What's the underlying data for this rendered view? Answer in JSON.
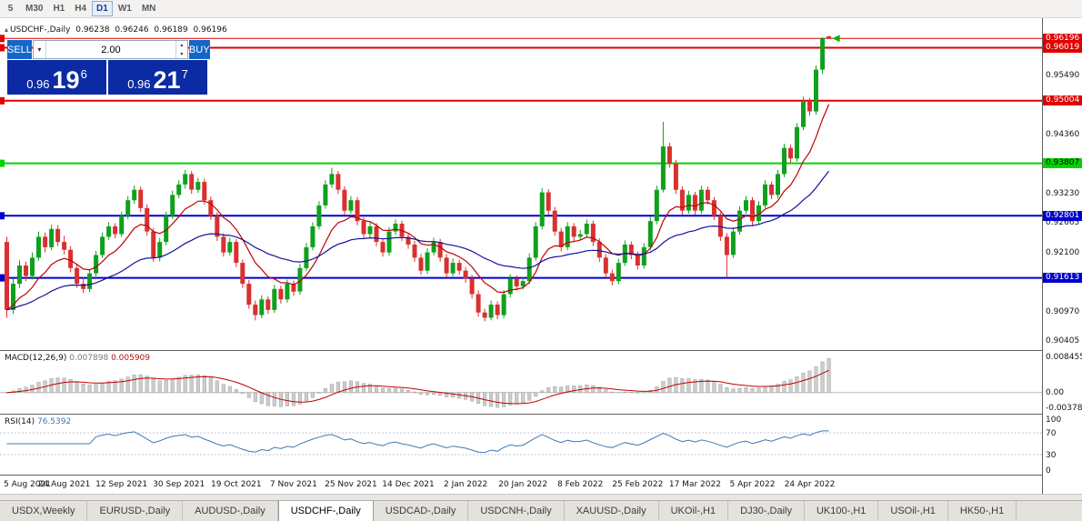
{
  "toolbar": {
    "periods": [
      {
        "label": "5",
        "active": false
      },
      {
        "label": "M30",
        "active": false
      },
      {
        "label": "H1",
        "active": false
      },
      {
        "label": "H4",
        "active": false
      },
      {
        "label": "D1",
        "active": true
      },
      {
        "label": "W1",
        "active": false
      },
      {
        "label": "MN",
        "active": false
      }
    ]
  },
  "chart_header": {
    "collapse_icon": "▴",
    "symbol": "USDCHF-,Daily",
    "open": "0.96238",
    "high": "0.96246",
    "low": "0.96189",
    "close": "0.96196"
  },
  "trade_panel": {
    "sell_label": "SELL",
    "buy_label": "BUY",
    "volume": "2.00",
    "dropdown_icon": "▾",
    "spin_up": "▴",
    "spin_down": "▾",
    "sell_price": {
      "base": "0.96",
      "pips": "19",
      "pipette": "6"
    },
    "buy_price": {
      "base": "0.96",
      "pips": "21",
      "pipette": "7"
    }
  },
  "chart_data": {
    "type": "candlestick",
    "title": "USDCHF-,Daily",
    "up_color": "#0fa01e",
    "down_color": "#d93030",
    "y_range": [
      0.903,
      0.9655
    ],
    "y_axis_labels": [
      0.9549,
      0.9436,
      0.9323,
      0.92665,
      0.921,
      0.9097,
      0.90405
    ],
    "price_markers": [
      {
        "price": 0.96196,
        "label": "0.96196",
        "bg": "#e00000",
        "fg": "#ffffff"
      },
      {
        "price": 0.96019,
        "label": "0.96019",
        "bg": "#e00000",
        "fg": "#ffffff"
      },
      {
        "price": 0.95004,
        "label": "0.95004",
        "bg": "#e00000",
        "fg": "#ffffff"
      },
      {
        "price": 0.93807,
        "label": "0.93807",
        "bg": "#00d400",
        "fg": "#000000"
      },
      {
        "price": 0.92801,
        "label": "0.92801",
        "bg": "#0000cc",
        "fg": "#ffffff"
      },
      {
        "price": 0.91613,
        "label": "0.91613",
        "bg": "#0000cc",
        "fg": "#ffffff"
      }
    ],
    "hlines": [
      {
        "price": 0.96196,
        "color": "#e00000",
        "width": 1
      },
      {
        "price": 0.96019,
        "color": "#e00000",
        "width": 2
      },
      {
        "price": 0.95004,
        "color": "#e00000",
        "width": 2
      },
      {
        "price": 0.93807,
        "color": "#00d400",
        "width": 2
      },
      {
        "price": 0.92801,
        "color": "#0000cc",
        "width": 2
      },
      {
        "price": 0.91613,
        "color": "#0000cc",
        "width": 2
      }
    ],
    "ma_lines": [
      {
        "period": 10,
        "color": "#c00000"
      },
      {
        "period": 34,
        "color": "#12129a"
      }
    ],
    "x_ticks": [
      "5 Aug 2021",
      "24 Aug 2021",
      "12 Sep 2021",
      "30 Sep 2021",
      "19 Oct 2021",
      "7 Nov 2021",
      "25 Nov 2021",
      "14 Dec 2021",
      "2 Jan 2022",
      "20 Jan 2022",
      "8 Feb 2022",
      "25 Feb 2022",
      "17 Mar 2022",
      "5 Apr 2022",
      "24 Apr 2022"
    ],
    "x_tick_indices": [
      0,
      9,
      18,
      27,
      36,
      45,
      54,
      63,
      72,
      81,
      90,
      99,
      108,
      117,
      126
    ],
    "candles": [
      [
        0.923,
        0.924,
        0.9085,
        0.91
      ],
      [
        0.91,
        0.916,
        0.9092,
        0.915
      ],
      [
        0.915,
        0.9195,
        0.9142,
        0.9185
      ],
      [
        0.9185,
        0.9192,
        0.9155,
        0.9165
      ],
      [
        0.9165,
        0.921,
        0.9158,
        0.92
      ],
      [
        0.92,
        0.925,
        0.9194,
        0.924
      ],
      [
        0.924,
        0.9248,
        0.921,
        0.922
      ],
      [
        0.922,
        0.9263,
        0.9214,
        0.9255
      ],
      [
        0.9255,
        0.9262,
        0.9222,
        0.923
      ],
      [
        0.923,
        0.9242,
        0.9206,
        0.9215
      ],
      [
        0.9215,
        0.9222,
        0.9172,
        0.918
      ],
      [
        0.918,
        0.9188,
        0.9142,
        0.915
      ],
      [
        0.915,
        0.9162,
        0.9132,
        0.914
      ],
      [
        0.914,
        0.9178,
        0.9134,
        0.917
      ],
      [
        0.917,
        0.9213,
        0.9164,
        0.9205
      ],
      [
        0.9205,
        0.9248,
        0.9199,
        0.924
      ],
      [
        0.924,
        0.9268,
        0.9234,
        0.926
      ],
      [
        0.926,
        0.9266,
        0.9237,
        0.9245
      ],
      [
        0.9245,
        0.9288,
        0.924,
        0.928
      ],
      [
        0.928,
        0.9318,
        0.9274,
        0.931
      ],
      [
        0.931,
        0.9338,
        0.9303,
        0.933
      ],
      [
        0.933,
        0.9336,
        0.9287,
        0.9295
      ],
      [
        0.9295,
        0.9302,
        0.9242,
        0.925
      ],
      [
        0.925,
        0.9257,
        0.9192,
        0.92
      ],
      [
        0.92,
        0.9238,
        0.9193,
        0.923
      ],
      [
        0.923,
        0.9288,
        0.9224,
        0.928
      ],
      [
        0.928,
        0.9328,
        0.9274,
        0.932
      ],
      [
        0.932,
        0.9348,
        0.9314,
        0.934
      ],
      [
        0.934,
        0.9368,
        0.9332,
        0.936
      ],
      [
        0.936,
        0.9366,
        0.9322,
        0.933
      ],
      [
        0.933,
        0.9353,
        0.9324,
        0.9345
      ],
      [
        0.9345,
        0.9351,
        0.9302,
        0.931
      ],
      [
        0.931,
        0.9317,
        0.9272,
        0.928
      ],
      [
        0.928,
        0.9287,
        0.9232,
        0.924
      ],
      [
        0.924,
        0.9247,
        0.9202,
        0.921
      ],
      [
        0.921,
        0.9238,
        0.9204,
        0.923
      ],
      [
        0.923,
        0.9236,
        0.9182,
        0.919
      ],
      [
        0.919,
        0.9196,
        0.9142,
        0.915
      ],
      [
        0.915,
        0.9157,
        0.9102,
        0.911
      ],
      [
        0.911,
        0.9118,
        0.908,
        0.909
      ],
      [
        0.909,
        0.9128,
        0.9084,
        0.912
      ],
      [
        0.912,
        0.9126,
        0.9092,
        0.91
      ],
      [
        0.91,
        0.9148,
        0.9094,
        0.914
      ],
      [
        0.914,
        0.9146,
        0.9112,
        0.912
      ],
      [
        0.912,
        0.9158,
        0.9114,
        0.915
      ],
      [
        0.915,
        0.9156,
        0.9127,
        0.9135
      ],
      [
        0.9135,
        0.9188,
        0.9129,
        0.918
      ],
      [
        0.918,
        0.9228,
        0.9174,
        0.922
      ],
      [
        0.922,
        0.9268,
        0.9214,
        0.926
      ],
      [
        0.926,
        0.9308,
        0.9254,
        0.93
      ],
      [
        0.93,
        0.9348,
        0.9294,
        0.934
      ],
      [
        0.934,
        0.9372,
        0.9334,
        0.936
      ],
      [
        0.936,
        0.9366,
        0.9322,
        0.933
      ],
      [
        0.933,
        0.9337,
        0.9282,
        0.929
      ],
      [
        0.929,
        0.9318,
        0.9284,
        0.931
      ],
      [
        0.931,
        0.9316,
        0.9262,
        0.927
      ],
      [
        0.927,
        0.9277,
        0.9237,
        0.9245
      ],
      [
        0.9245,
        0.9268,
        0.9239,
        0.926
      ],
      [
        0.926,
        0.9266,
        0.9222,
        0.923
      ],
      [
        0.923,
        0.9237,
        0.9202,
        0.921
      ],
      [
        0.921,
        0.9258,
        0.9204,
        0.925
      ],
      [
        0.925,
        0.9273,
        0.9244,
        0.9265
      ],
      [
        0.9265,
        0.9271,
        0.9232,
        0.924
      ],
      [
        0.924,
        0.9247,
        0.9217,
        0.9225
      ],
      [
        0.9225,
        0.9232,
        0.9192,
        0.92
      ],
      [
        0.92,
        0.9207,
        0.9167,
        0.9175
      ],
      [
        0.9175,
        0.9218,
        0.9169,
        0.921
      ],
      [
        0.921,
        0.9238,
        0.9204,
        0.923
      ],
      [
        0.923,
        0.9236,
        0.9192,
        0.92
      ],
      [
        0.92,
        0.9207,
        0.9162,
        0.917
      ],
      [
        0.917,
        0.9198,
        0.9164,
        0.919
      ],
      [
        0.919,
        0.9196,
        0.9167,
        0.9175
      ],
      [
        0.9175,
        0.9182,
        0.9152,
        0.916
      ],
      [
        0.916,
        0.9167,
        0.9122,
        0.913
      ],
      [
        0.913,
        0.9137,
        0.9087,
        0.9095
      ],
      [
        0.9095,
        0.9102,
        0.9078,
        0.9085
      ],
      [
        0.9085,
        0.9118,
        0.908,
        0.911
      ],
      [
        0.911,
        0.9116,
        0.9082,
        0.909
      ],
      [
        0.909,
        0.9138,
        0.9084,
        0.913
      ],
      [
        0.913,
        0.9168,
        0.9124,
        0.916
      ],
      [
        0.916,
        0.9166,
        0.9137,
        0.9145
      ],
      [
        0.9145,
        0.9163,
        0.9139,
        0.9155
      ],
      [
        0.9155,
        0.9208,
        0.9149,
        0.92
      ],
      [
        0.92,
        0.9268,
        0.9194,
        0.926
      ],
      [
        0.926,
        0.9333,
        0.9254,
        0.9325
      ],
      [
        0.9325,
        0.9331,
        0.9282,
        0.929
      ],
      [
        0.929,
        0.9297,
        0.9242,
        0.925
      ],
      [
        0.925,
        0.9257,
        0.9212,
        0.922
      ],
      [
        0.922,
        0.9268,
        0.9214,
        0.926
      ],
      [
        0.926,
        0.9266,
        0.9232,
        0.924
      ],
      [
        0.924,
        0.9253,
        0.9234,
        0.9245
      ],
      [
        0.9245,
        0.9273,
        0.9239,
        0.9265
      ],
      [
        0.9265,
        0.9271,
        0.9222,
        0.923
      ],
      [
        0.923,
        0.9237,
        0.9192,
        0.92
      ],
      [
        0.92,
        0.9207,
        0.9162,
        0.917
      ],
      [
        0.917,
        0.9177,
        0.9147,
        0.9155
      ],
      [
        0.9155,
        0.9198,
        0.9149,
        0.919
      ],
      [
        0.919,
        0.9233,
        0.9184,
        0.9225
      ],
      [
        0.9225,
        0.9231,
        0.9197,
        0.9205
      ],
      [
        0.9205,
        0.9212,
        0.9177,
        0.9185
      ],
      [
        0.9185,
        0.9228,
        0.9179,
        0.922
      ],
      [
        0.922,
        0.9278,
        0.9214,
        0.927
      ],
      [
        0.927,
        0.9338,
        0.9264,
        0.933
      ],
      [
        0.933,
        0.946,
        0.9325,
        0.9413
      ],
      [
        0.9413,
        0.942,
        0.9372,
        0.938
      ],
      [
        0.938,
        0.9387,
        0.9322,
        0.933
      ],
      [
        0.933,
        0.9337,
        0.9282,
        0.929
      ],
      [
        0.929,
        0.9328,
        0.9284,
        0.932
      ],
      [
        0.932,
        0.9326,
        0.9282,
        0.929
      ],
      [
        0.929,
        0.9338,
        0.9284,
        0.933
      ],
      [
        0.933,
        0.9336,
        0.9302,
        0.931
      ],
      [
        0.931,
        0.9316,
        0.9272,
        0.928
      ],
      [
        0.928,
        0.9287,
        0.9232,
        0.924
      ],
      [
        0.924,
        0.9247,
        0.9162,
        0.9205
      ],
      [
        0.9205,
        0.9258,
        0.9199,
        0.925
      ],
      [
        0.925,
        0.9298,
        0.9244,
        0.929
      ],
      [
        0.929,
        0.9318,
        0.9284,
        0.931
      ],
      [
        0.931,
        0.9316,
        0.9262,
        0.927
      ],
      [
        0.927,
        0.9308,
        0.9264,
        0.93
      ],
      [
        0.93,
        0.9348,
        0.9294,
        0.934
      ],
      [
        0.934,
        0.9346,
        0.9312,
        0.932
      ],
      [
        0.932,
        0.9368,
        0.9314,
        0.936
      ],
      [
        0.936,
        0.9418,
        0.9354,
        0.941
      ],
      [
        0.941,
        0.9416,
        0.9382,
        0.939
      ],
      [
        0.939,
        0.9458,
        0.9384,
        0.945
      ],
      [
        0.945,
        0.9508,
        0.9444,
        0.95
      ],
      [
        0.95,
        0.9506,
        0.9472,
        0.948
      ],
      [
        0.948,
        0.9568,
        0.9474,
        0.956
      ],
      [
        0.956,
        0.9622,
        0.9552,
        0.962
      ],
      [
        0.96238,
        0.96246,
        0.96189,
        0.96196
      ]
    ],
    "macd": {
      "label": "MACD(12,26,9)",
      "value_main": "0.007898",
      "value_signal": "0.005909",
      "params": [
        12,
        26,
        9
      ],
      "range": [
        -0.0042,
        0.0095
      ],
      "axis_labels": [
        {
          "value": 0.008455,
          "text": "0.008455"
        },
        {
          "value": 0.0,
          "text": "0.00"
        },
        {
          "value": -0.003784,
          "text": "-0.003784"
        }
      ],
      "histogram_color": "#cdcdcd",
      "histogram_border": "#a2a2a2",
      "signal_color": "#c00000",
      "zero_line_color": "#b8b8b8"
    },
    "rsi": {
      "label": "RSI(14)",
      "value": "76.5392",
      "period": 14,
      "range": [
        0,
        100
      ],
      "levels": [
        70,
        30
      ],
      "axis_labels": [
        {
          "value": 100,
          "text": "100"
        },
        {
          "value": 70,
          "text": "70"
        },
        {
          "value": 30,
          "text": "30"
        },
        {
          "value": 0,
          "text": "0"
        }
      ],
      "line_color": "#3d7ab5",
      "level_color": "#a8b2c8"
    },
    "last_price_arrow_color": "#00b400"
  },
  "bottom_tabs": {
    "active": "USDCHF-,Daily",
    "items": [
      "USDX,Weekly",
      "EURUSD-,Daily",
      "AUDUSD-,Daily",
      "USDCHF-,Daily",
      "USDCAD-,Daily",
      "USDCNH-,Daily",
      "XAUUSD-,Daily",
      "UKOil-,H1",
      "DJ30-,Daily",
      "UK100-,H1",
      "USOil-,H1",
      "HK50-,H1"
    ]
  }
}
